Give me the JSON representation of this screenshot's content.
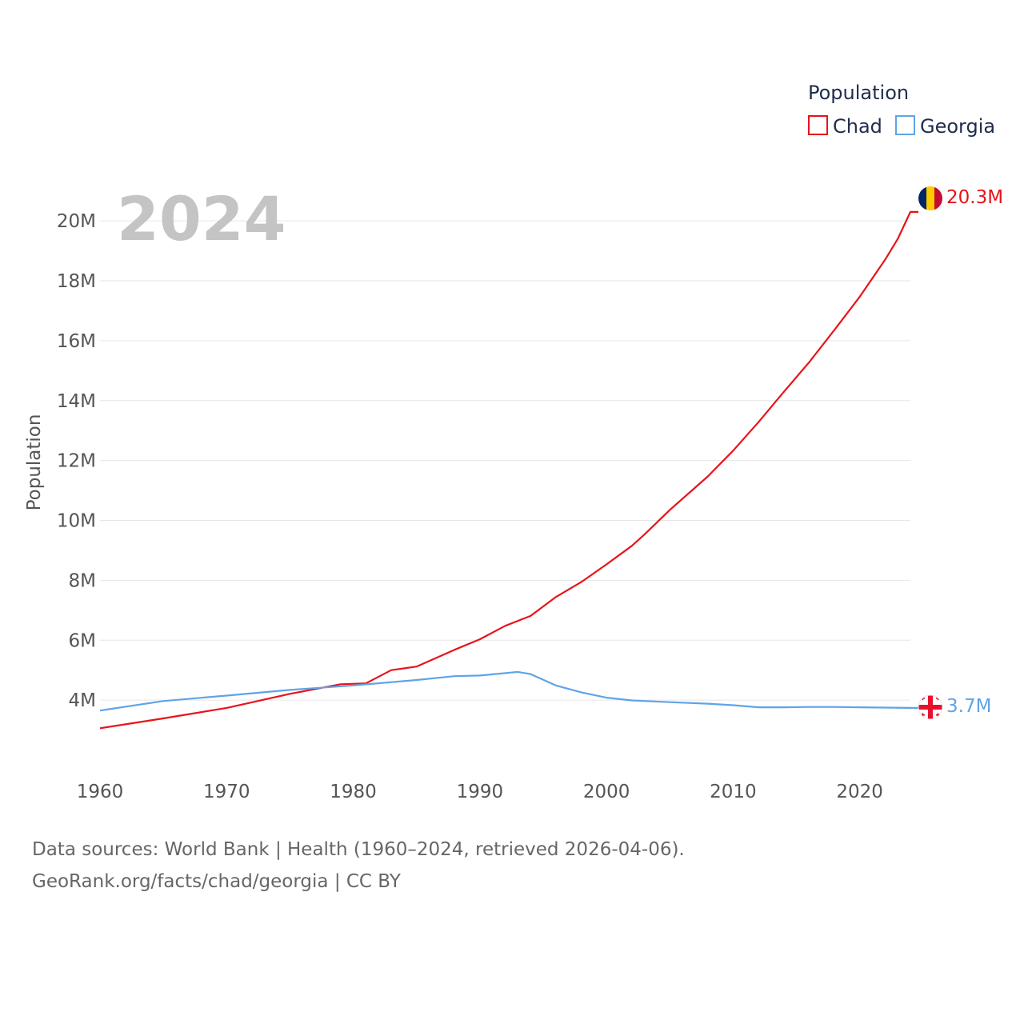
{
  "chart_data": {
    "type": "line",
    "year_label": "2024",
    "ylabel": "Population",
    "xlabel": "",
    "xlim": [
      1960,
      2024
    ],
    "ylim": [
      2000000,
      21500000
    ],
    "x_ticks": [
      1960,
      1970,
      1980,
      1990,
      2000,
      2010,
      2020
    ],
    "x_tick_labels": [
      "1960",
      "1970",
      "1980",
      "1990",
      "2000",
      "2010",
      "2020"
    ],
    "y_ticks": [
      4000000,
      6000000,
      8000000,
      10000000,
      12000000,
      14000000,
      16000000,
      18000000,
      20000000
    ],
    "y_tick_labels": [
      "4M",
      "6M",
      "8M",
      "10M",
      "12M",
      "14M",
      "16M",
      "18M",
      "20M"
    ],
    "legend_title": "Population",
    "series": [
      {
        "name": "Chad",
        "color": "#e8131b",
        "end_label": "20.3M",
        "points": [
          [
            1960,
            3060000
          ],
          [
            1965,
            3390000
          ],
          [
            1970,
            3740000
          ],
          [
            1975,
            4210000
          ],
          [
            1979,
            4530000
          ],
          [
            1981,
            4560000
          ],
          [
            1983,
            5000000
          ],
          [
            1985,
            5120000
          ],
          [
            1988,
            5680000
          ],
          [
            1990,
            6030000
          ],
          [
            1992,
            6480000
          ],
          [
            1994,
            6810000
          ],
          [
            1996,
            7440000
          ],
          [
            1998,
            7940000
          ],
          [
            2000,
            8530000
          ],
          [
            2002,
            9150000
          ],
          [
            2003,
            9530000
          ],
          [
            2005,
            10350000
          ],
          [
            2008,
            11470000
          ],
          [
            2010,
            12330000
          ],
          [
            2012,
            13280000
          ],
          [
            2014,
            14290000
          ],
          [
            2016,
            15280000
          ],
          [
            2018,
            16360000
          ],
          [
            2020,
            17470000
          ],
          [
            2022,
            18700000
          ],
          [
            2023,
            19400000
          ],
          [
            2024,
            20300000
          ]
        ]
      },
      {
        "name": "Georgia",
        "color": "#5fa4e6",
        "end_label": "3.7M",
        "points": [
          [
            1960,
            3650000
          ],
          [
            1965,
            3970000
          ],
          [
            1970,
            4150000
          ],
          [
            1975,
            4340000
          ],
          [
            1980,
            4490000
          ],
          [
            1985,
            4670000
          ],
          [
            1988,
            4800000
          ],
          [
            1990,
            4820000
          ],
          [
            1993,
            4940000
          ],
          [
            1994,
            4870000
          ],
          [
            1996,
            4490000
          ],
          [
            1998,
            4260000
          ],
          [
            2000,
            4080000
          ],
          [
            2002,
            3990000
          ],
          [
            2005,
            3930000
          ],
          [
            2008,
            3880000
          ],
          [
            2010,
            3830000
          ],
          [
            2012,
            3760000
          ],
          [
            2014,
            3760000
          ],
          [
            2016,
            3770000
          ],
          [
            2018,
            3770000
          ],
          [
            2020,
            3760000
          ],
          [
            2022,
            3750000
          ],
          [
            2024,
            3740000
          ]
        ]
      }
    ]
  },
  "source": {
    "line1": "Data sources: World Bank | Health (1960–2024, retrieved 2026-04-06).",
    "line2": "GeoRank.org/facts/chad/georgia | CC BY"
  }
}
